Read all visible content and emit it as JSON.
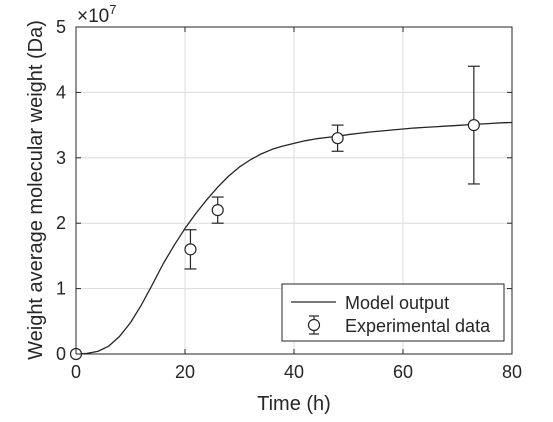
{
  "chart_data": {
    "type": "line",
    "xlabel": "Time (h)",
    "ylabel": "Weight average molecular weight (Da)",
    "y_exponent_label": "×10",
    "y_exponent_power": "7",
    "xlim": [
      0,
      80
    ],
    "ylim": [
      0,
      5
    ],
    "y_scale_factor": 10000000,
    "x_ticks": [
      0,
      20,
      40,
      60,
      80
    ],
    "y_ticks": [
      0,
      1,
      2,
      3,
      4,
      5
    ],
    "x_tick_labels": [
      "0",
      "20",
      "40",
      "60",
      "80"
    ],
    "y_tick_labels": [
      "0",
      "1",
      "2",
      "3",
      "4",
      "5"
    ],
    "grid": true,
    "legend_position": "bottom-right",
    "series": [
      {
        "name": "Model output",
        "kind": "line",
        "color": "#262626",
        "x": [
          0,
          2,
          4,
          6,
          8,
          10,
          12,
          14,
          16,
          18,
          20,
          22,
          24,
          26,
          28,
          30,
          32,
          34,
          36,
          38,
          40,
          42,
          44,
          46,
          48,
          50,
          52,
          54,
          56,
          58,
          60,
          62,
          64,
          66,
          68,
          70,
          72,
          74,
          76,
          78,
          80
        ],
        "y": [
          0.0,
          0.01,
          0.04,
          0.12,
          0.27,
          0.48,
          0.75,
          1.06,
          1.38,
          1.66,
          1.92,
          2.15,
          2.36,
          2.55,
          2.72,
          2.86,
          2.97,
          3.06,
          3.13,
          3.18,
          3.22,
          3.26,
          3.29,
          3.31,
          3.33,
          3.355,
          3.375,
          3.395,
          3.41,
          3.425,
          3.44,
          3.455,
          3.465,
          3.475,
          3.485,
          3.495,
          3.505,
          3.515,
          3.525,
          3.535,
          3.54
        ]
      },
      {
        "name": "Experimental data",
        "kind": "errorbar",
        "color": "#262626",
        "x": [
          0,
          21,
          26,
          48,
          73
        ],
        "y": [
          0.0,
          1.6,
          2.2,
          3.3,
          3.5
        ],
        "err_low": [
          0.0,
          1.3,
          2.0,
          3.1,
          2.6
        ],
        "err_high": [
          0.0,
          1.9,
          2.4,
          3.5,
          4.4
        ]
      }
    ]
  }
}
